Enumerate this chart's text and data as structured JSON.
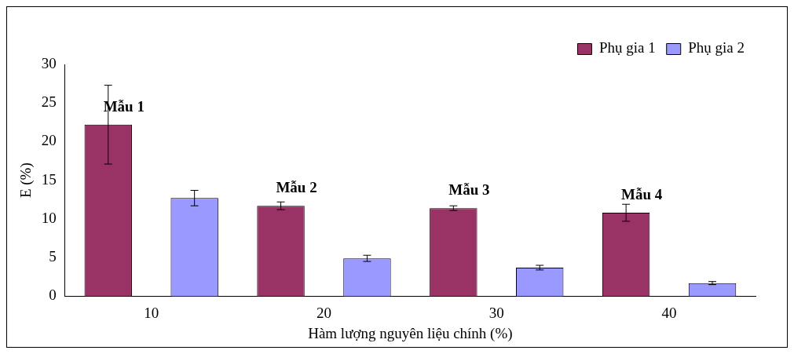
{
  "chart_data": {
    "type": "bar",
    "xlabel": "Hàm lượng nguyên liệu chính (%)",
    "ylabel": "E (%)",
    "categories": [
      "10",
      "20",
      "30",
      "40"
    ],
    "series": [
      {
        "name": "Phụ gia 1",
        "color": "#993366",
        "values": [
          22.2,
          11.7,
          11.4,
          10.8
        ],
        "errors": [
          5.1,
          0.5,
          0.3,
          1.1
        ]
      },
      {
        "name": "Phụ gia 2",
        "color": "#9999ff",
        "values": [
          12.7,
          4.9,
          3.7,
          1.7
        ],
        "errors": [
          1.0,
          0.4,
          0.3,
          0.2
        ]
      }
    ],
    "ylim": [
      0,
      30
    ],
    "yticks": [
      0,
      5,
      10,
      15,
      20,
      25,
      30
    ],
    "grid": false,
    "legend": "top right",
    "annotations": [
      "Mẫu 1",
      "Mẫu 2",
      "Mẫu 3",
      "Mẫu 4"
    ]
  }
}
